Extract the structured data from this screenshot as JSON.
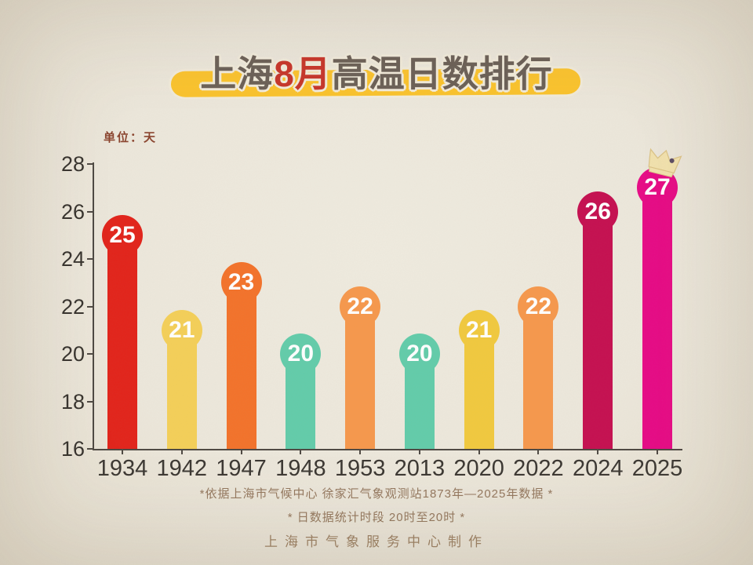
{
  "page": {
    "background_color": "#ece7db"
  },
  "title": {
    "prefix": "上海",
    "highlight": "8月",
    "suffix": "高温日数排行",
    "highlight_color": "#c8352a",
    "text_color": "#6b6057",
    "swash_color": "#fbc42d"
  },
  "unit_label": "单位：天",
  "chart_data": {
    "type": "bar",
    "title": "上海8月高温日数排行",
    "ylabel": "单位：天",
    "categories": [
      "1934",
      "1942",
      "1947",
      "1948",
      "1953",
      "2013",
      "2020",
      "2022",
      "2024",
      "2025"
    ],
    "values": [
      25,
      21,
      23,
      20,
      22,
      20,
      21,
      22,
      26,
      27
    ],
    "bar_colors": [
      "#e2231a",
      "#f4cf58",
      "#f3722a",
      "#62ccaa",
      "#f6984c",
      "#62ccaa",
      "#f1c93e",
      "#f6984c",
      "#c50f50",
      "#e70a86"
    ],
    "value_text_color": "#ffffff",
    "ylim": [
      16,
      28
    ],
    "yticks": [
      28,
      26,
      24,
      22,
      20,
      18,
      16
    ],
    "grid": false,
    "legend": null,
    "crown_on_category": "2025",
    "crown_color": "#f2e2ae"
  },
  "footer": {
    "note1": "*依据上海市气候中心 徐家汇气象观测站1873年—2025年数据 *",
    "note2": "* 日数据统计时段 20时至20时 *",
    "credit": "上海市气象服务中心制作"
  }
}
